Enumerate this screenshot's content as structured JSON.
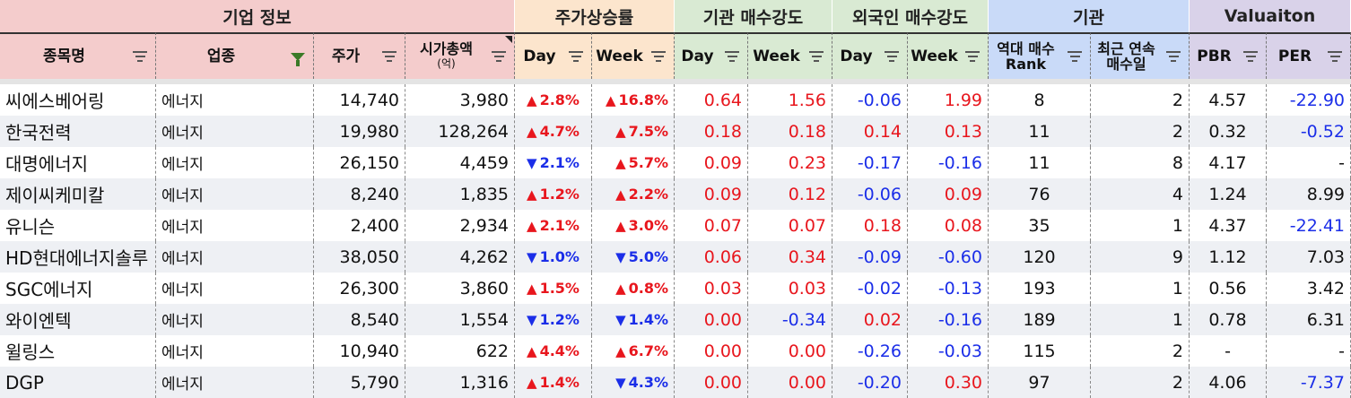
{
  "colors": {
    "company_info": "#f4cccc",
    "price_change": "#fce5cd",
    "inst_strength": "#d9ead3",
    "foreign_strength": "#d9ead3",
    "inst": "#c9daf8",
    "valuation": "#d9d2e9",
    "up": "#e8161d",
    "down": "#1b2ee8"
  },
  "groups": [
    {
      "id": "company_info",
      "label": "기업 정보"
    },
    {
      "id": "price_change",
      "label": "주가상승률"
    },
    {
      "id": "inst_strength",
      "label": "기관 매수강도"
    },
    {
      "id": "foreign_strength",
      "label": "외국인 매수강도"
    },
    {
      "id": "inst",
      "label": "기관"
    },
    {
      "id": "valuation",
      "label": "Valuaiton"
    }
  ],
  "columns": [
    {
      "id": "name",
      "label": "종목명",
      "filter": "filter-icon"
    },
    {
      "id": "sector",
      "label": "업종",
      "filter": "filter-active-icon"
    },
    {
      "id": "price",
      "label": "주가",
      "filter": "filter-icon"
    },
    {
      "id": "mcap",
      "label": "시가총액",
      "sublabel": "(억)",
      "filter": "filter-icon"
    },
    {
      "id": "pc_day",
      "label": "Day",
      "filter": "filter-icon"
    },
    {
      "id": "pc_week",
      "label": "Week",
      "filter": "filter-icon"
    },
    {
      "id": "is_day",
      "label": "Day",
      "filter": "filter-icon"
    },
    {
      "id": "is_week",
      "label": "Week",
      "filter": "filter-icon"
    },
    {
      "id": "fs_day",
      "label": "Day",
      "filter": "filter-icon"
    },
    {
      "id": "fs_week",
      "label": "Week",
      "filter": "filter-icon"
    },
    {
      "id": "rank",
      "label": "역대 매수",
      "sublabel": "Rank",
      "filter": "filter-icon"
    },
    {
      "id": "streak",
      "label": "최근 연속",
      "sublabel": "매수일",
      "filter": "filter-icon"
    },
    {
      "id": "pbr",
      "label": "PBR",
      "filter": "filter-icon"
    },
    {
      "id": "per",
      "label": "PER",
      "filter": "filter-icon"
    }
  ],
  "rows": [
    {
      "name": "씨에스베어링",
      "sector": "에너지",
      "price": "14,740",
      "mcap": "3,980",
      "pc_day": "2.8%",
      "pc_day_dir": "up",
      "pc_week": "16.8%",
      "pc_week_dir": "up",
      "is_day": "0.64",
      "is_week": "1.56",
      "fs_day": "-0.06",
      "fs_week": "1.99",
      "rank": "8",
      "streak": "2",
      "pbr": "4.57",
      "per": "-22.90"
    },
    {
      "name": "한국전력",
      "sector": "에너지",
      "price": "19,980",
      "mcap": "128,264",
      "pc_day": "4.7%",
      "pc_day_dir": "up",
      "pc_week": "7.5%",
      "pc_week_dir": "up",
      "is_day": "0.18",
      "is_week": "0.18",
      "fs_day": "0.14",
      "fs_week": "0.13",
      "rank": "11",
      "streak": "2",
      "pbr": "0.32",
      "per": "-0.52"
    },
    {
      "name": "대명에너지",
      "sector": "에너지",
      "price": "26,150",
      "mcap": "4,459",
      "pc_day": "2.1%",
      "pc_day_dir": "down",
      "pc_week": "5.7%",
      "pc_week_dir": "up",
      "is_day": "0.09",
      "is_week": "0.23",
      "fs_day": "-0.17",
      "fs_week": "-0.16",
      "rank": "11",
      "streak": "8",
      "pbr": "4.17",
      "per": "-"
    },
    {
      "name": "제이씨케미칼",
      "sector": "에너지",
      "price": "8,240",
      "mcap": "1,835",
      "pc_day": "1.2%",
      "pc_day_dir": "up",
      "pc_week": "2.2%",
      "pc_week_dir": "up",
      "is_day": "0.09",
      "is_week": "0.12",
      "fs_day": "-0.06",
      "fs_week": "0.09",
      "rank": "76",
      "streak": "4",
      "pbr": "1.24",
      "per": "8.99"
    },
    {
      "name": "유니슨",
      "sector": "에너지",
      "price": "2,400",
      "mcap": "2,934",
      "pc_day": "2.1%",
      "pc_day_dir": "up",
      "pc_week": "3.0%",
      "pc_week_dir": "up",
      "is_day": "0.07",
      "is_week": "0.07",
      "fs_day": "0.18",
      "fs_week": "0.08",
      "rank": "35",
      "streak": "1",
      "pbr": "4.37",
      "per": "-22.41"
    },
    {
      "name": "HD현대에너지솔루",
      "sector": "에너지",
      "price": "38,050",
      "mcap": "4,262",
      "pc_day": "1.0%",
      "pc_day_dir": "down",
      "pc_week": "5.0%",
      "pc_week_dir": "down",
      "is_day": "0.06",
      "is_week": "0.34",
      "fs_day": "-0.09",
      "fs_week": "-0.60",
      "rank": "120",
      "streak": "9",
      "pbr": "1.12",
      "per": "7.03"
    },
    {
      "name": "SGC에너지",
      "sector": "에너지",
      "price": "26,300",
      "mcap": "3,860",
      "pc_day": "1.5%",
      "pc_day_dir": "up",
      "pc_week": "0.8%",
      "pc_week_dir": "up",
      "is_day": "0.03",
      "is_week": "0.03",
      "fs_day": "-0.02",
      "fs_week": "-0.13",
      "rank": "193",
      "streak": "1",
      "pbr": "0.56",
      "per": "3.42"
    },
    {
      "name": "와이엔텍",
      "sector": "에너지",
      "price": "8,540",
      "mcap": "1,554",
      "pc_day": "1.2%",
      "pc_day_dir": "down",
      "pc_week": "1.4%",
      "pc_week_dir": "down",
      "is_day": "0.00",
      "is_week": "-0.34",
      "fs_day": "0.02",
      "fs_week": "-0.16",
      "rank": "189",
      "streak": "1",
      "pbr": "0.78",
      "per": "6.31"
    },
    {
      "name": "윌링스",
      "sector": "에너지",
      "price": "10,940",
      "mcap": "622",
      "pc_day": "4.4%",
      "pc_day_dir": "up",
      "pc_week": "6.7%",
      "pc_week_dir": "up",
      "is_day": "0.00",
      "is_week": "0.00",
      "fs_day": "-0.26",
      "fs_week": "-0.03",
      "rank": "115",
      "streak": "2",
      "pbr": "-",
      "per": "-"
    },
    {
      "name": "DGP",
      "sector": "에너지",
      "price": "5,790",
      "mcap": "1,316",
      "pc_day": "1.4%",
      "pc_day_dir": "up",
      "pc_week": "4.3%",
      "pc_week_dir": "down",
      "is_day": "0.00",
      "is_week": "0.00",
      "fs_day": "-0.20",
      "fs_week": "0.30",
      "rank": "97",
      "streak": "2",
      "pbr": "4.06",
      "per": "-7.37"
    }
  ]
}
